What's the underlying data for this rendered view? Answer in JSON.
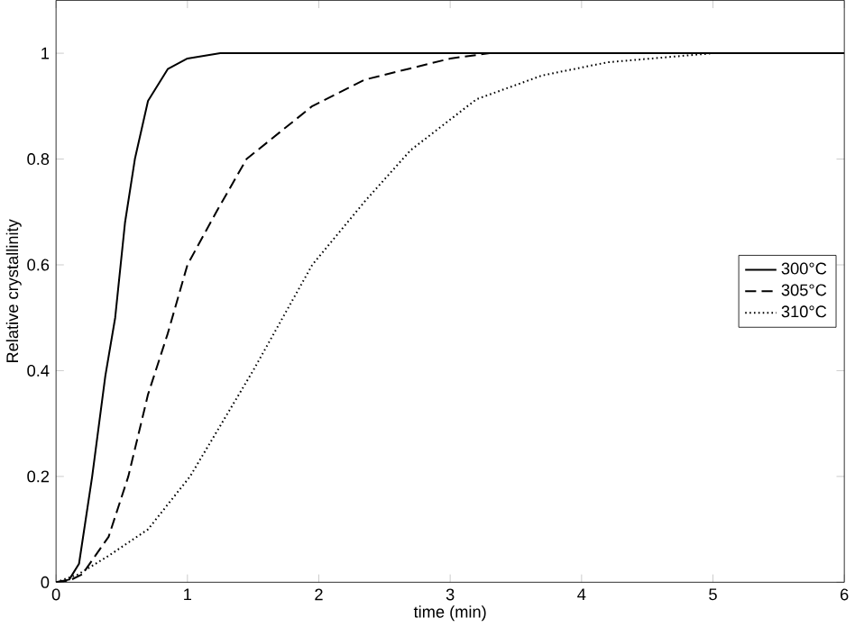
{
  "chart_data": {
    "type": "line",
    "xlabel": "time (min)",
    "ylabel": "Relative crystallinity",
    "xlim": [
      0,
      6
    ],
    "ylim": [
      0,
      1.1
    ],
    "xticks": [
      0,
      1,
      2,
      3,
      4,
      5,
      6
    ],
    "yticks": [
      0,
      0.2,
      0.4,
      0.6,
      0.8,
      1
    ],
    "legend": "right",
    "grid": false,
    "marker": "none",
    "series": [
      {
        "name": "300°C",
        "color": "#000000",
        "line_style": "solid",
        "x": [
          0,
          0.1,
          0.175,
          0.275,
          0.375,
          0.45,
          0.525,
          0.6,
          0.7,
          0.85,
          1.0,
          1.25,
          6
        ],
        "values": [
          0,
          0.005,
          0.035,
          0.2,
          0.39,
          0.5,
          0.68,
          0.8,
          0.91,
          0.97,
          0.99,
          1,
          1
        ]
      },
      {
        "name": "305°C",
        "color": "#000000",
        "line_style": "dashed",
        "x": [
          0,
          0.1,
          0.2,
          0.4,
          0.55,
          0.7,
          0.85,
          1.0,
          1.22,
          1.45,
          1.95,
          2.35,
          3.0,
          3.3
        ],
        "values": [
          0,
          0.003,
          0.015,
          0.086,
          0.2,
          0.355,
          0.47,
          0.6,
          0.7,
          0.8,
          0.9,
          0.95,
          0.99,
          1
        ]
      },
      {
        "name": "310°C",
        "color": "#000000",
        "line_style": "dotted",
        "x": [
          0,
          0.17,
          0.4,
          0.7,
          1.02,
          1.5,
          1.95,
          2.35,
          2.7,
          3.2,
          3.7,
          4.2,
          5.0
        ],
        "values": [
          0,
          0.015,
          0.05,
          0.1,
          0.2,
          0.4,
          0.6,
          0.72,
          0.817,
          0.913,
          0.958,
          0.983,
          1
        ]
      }
    ]
  }
}
